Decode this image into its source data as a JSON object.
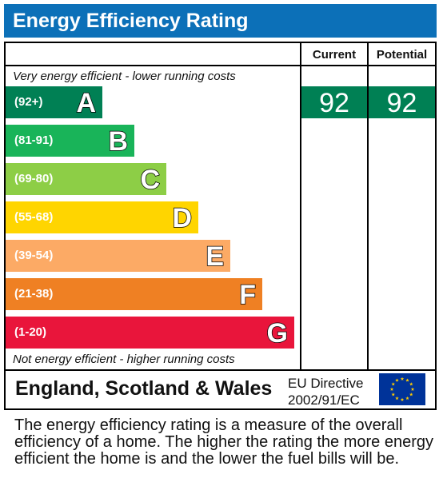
{
  "title": "Energy Efficiency Rating",
  "columns": {
    "current": "Current",
    "potential": "Potential"
  },
  "notes": {
    "top": "Very energy efficient - lower running costs",
    "bottom": "Not energy efficient - higher running costs"
  },
  "chart_data": {
    "type": "bar",
    "title": "Energy Efficiency Rating",
    "categories": [
      "A",
      "B",
      "C",
      "D",
      "E",
      "F",
      "G"
    ],
    "bands": [
      {
        "letter": "A",
        "range": "(92+)",
        "color": "#008054",
        "min": 92,
        "max": 100
      },
      {
        "letter": "B",
        "range": "(81-91)",
        "color": "#19b459",
        "min": 81,
        "max": 91
      },
      {
        "letter": "C",
        "range": "(69-80)",
        "color": "#8dce46",
        "min": 69,
        "max": 80
      },
      {
        "letter": "D",
        "range": "(55-68)",
        "color": "#ffd500",
        "min": 55,
        "max": 68
      },
      {
        "letter": "E",
        "range": "(39-54)",
        "color": "#fcaa65",
        "min": 39,
        "max": 54
      },
      {
        "letter": "F",
        "range": "(21-38)",
        "color": "#ef8023",
        "min": 21,
        "max": 38
      },
      {
        "letter": "G",
        "range": "(1-20)",
        "color": "#e9153b",
        "min": 1,
        "max": 20
      }
    ],
    "current": {
      "value": 92,
      "band": "A",
      "color": "#008054"
    },
    "potential": {
      "value": 92,
      "band": "A",
      "color": "#008054"
    }
  },
  "footer": {
    "region": "England, Scotland & Wales",
    "directive_line1": "EU Directive",
    "directive_line2": "2002/91/EC",
    "flag_color": "#003399",
    "star_color": "#ffcc00"
  },
  "description": "The energy efficiency rating is a measure of the overall efficiency of a home. The higher the rating the more energy efficient the home is and the lower the fuel bills will be."
}
